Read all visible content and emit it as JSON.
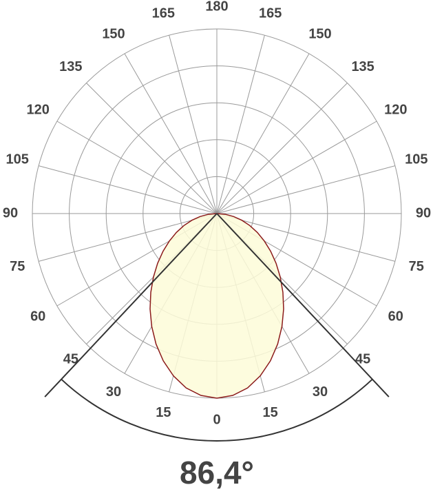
{
  "chart_data": {
    "type": "polar",
    "angle_ticks": [
      0,
      15,
      30,
      45,
      60,
      75,
      90,
      105,
      120,
      135,
      150,
      165,
      180
    ],
    "rlim": [
      0,
      100
    ],
    "rticks": [
      20,
      40,
      60,
      80,
      100
    ],
    "grid": true,
    "series": [
      {
        "angles": [
          0,
          5,
          10,
          15,
          20,
          25,
          30,
          35,
          40,
          45,
          50,
          55,
          60,
          65,
          70,
          75,
          80,
          85,
          90
        ],
        "values": [
          100,
          98.9,
          95.9,
          91.0,
          84.9,
          78.0,
          70.6,
          63.1,
          55.7,
          48.6,
          41.9,
          35.6,
          29.7,
          24.2,
          19.0,
          14.0,
          9.2,
          4.6,
          0
        ],
        "color": "#8b1a1a",
        "fill": "#fdfbd8"
      }
    ],
    "beam_angle": {
      "value": 86.4,
      "label": "86,4°"
    }
  }
}
